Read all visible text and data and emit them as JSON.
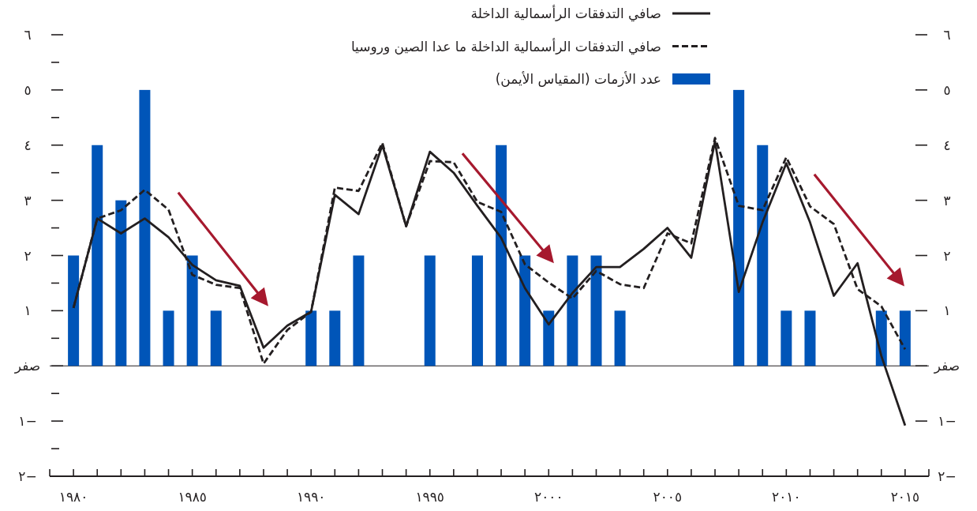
{
  "chart_data": {
    "type": "line",
    "x": [
      1980,
      1981,
      1982,
      1983,
      1984,
      1985,
      1986,
      1987,
      1988,
      1989,
      1990,
      1991,
      1992,
      1993,
      1994,
      1995,
      1996,
      1997,
      1998,
      1999,
      2000,
      2001,
      2002,
      2003,
      2004,
      2005,
      2006,
      2007,
      2008,
      2009,
      2010,
      2011,
      2012,
      2013,
      2014,
      2015
    ],
    "series": [
      {
        "name": "صافي التدفقات الرأسمالية الداخلة",
        "color": "#231f20",
        "line_style": "solid",
        "values": [
          1.05,
          2.67,
          2.4,
          2.67,
          2.33,
          1.83,
          1.55,
          1.45,
          0.33,
          0.73,
          0.98,
          3.1,
          2.75,
          4.0,
          2.53,
          3.88,
          3.5,
          2.9,
          2.32,
          1.41,
          0.75,
          1.32,
          1.79,
          1.79,
          2.12,
          2.5,
          1.96,
          4.07,
          1.34,
          2.6,
          3.67,
          2.6,
          1.27,
          1.86,
          0.18,
          -1.08
        ]
      },
      {
        "name": "صافي التدفقات الرأسمالية الداخلة ما عدا الصين وروسيا",
        "color": "#231f20",
        "line_style": "dashed",
        "values": [
          1.05,
          2.67,
          2.82,
          3.19,
          2.83,
          1.65,
          1.47,
          1.41,
          0.04,
          0.65,
          0.98,
          3.23,
          3.17,
          4.04,
          2.53,
          3.71,
          3.69,
          2.97,
          2.79,
          1.84,
          1.51,
          1.22,
          1.72,
          1.48,
          1.41,
          2.4,
          2.22,
          4.13,
          2.9,
          2.82,
          3.78,
          2.89,
          2.57,
          1.39,
          1.08,
          0.3
        ]
      },
      {
        "name": "عدد الأزمات (المقياس الأيمن)",
        "type": "bar",
        "axis": "y2",
        "color": "#0055b8",
        "values": [
          2,
          4,
          3,
          5,
          1,
          2,
          1,
          0,
          0,
          0,
          1,
          1,
          2,
          0,
          0,
          2,
          0,
          2,
          4,
          2,
          1,
          2,
          2,
          1,
          0,
          0,
          0,
          0,
          5,
          4,
          1,
          1,
          0,
          0,
          1,
          1
        ]
      }
    ],
    "xlim": [
      1979,
      2016
    ],
    "xticks": [
      {
        "value": 1979,
        "label": null
      },
      {
        "value": 1980,
        "label": "١٩٨٠"
      },
      {
        "value": 1981,
        "label": null
      },
      {
        "value": 1982,
        "label": null
      },
      {
        "value": 1983,
        "label": null
      },
      {
        "value": 1984,
        "label": null
      },
      {
        "value": 1985,
        "label": "١٩٨٥"
      },
      {
        "value": 1986,
        "label": null
      },
      {
        "value": 1987,
        "label": null
      },
      {
        "value": 1988,
        "label": null
      },
      {
        "value": 1989,
        "label": null
      },
      {
        "value": 1990,
        "label": "١٩٩٠"
      },
      {
        "value": 1991,
        "label": null
      },
      {
        "value": 1992,
        "label": null
      },
      {
        "value": 1993,
        "label": null
      },
      {
        "value": 1994,
        "label": null
      },
      {
        "value": 1995,
        "label": "١٩٩٥"
      },
      {
        "value": 1996,
        "label": null
      },
      {
        "value": 1997,
        "label": null
      },
      {
        "value": 1998,
        "label": null
      },
      {
        "value": 1999,
        "label": null
      },
      {
        "value": 2000,
        "label": "٢٠٠٠"
      },
      {
        "value": 2001,
        "label": null
      },
      {
        "value": 2002,
        "label": null
      },
      {
        "value": 2003,
        "label": null
      },
      {
        "value": 2004,
        "label": null
      },
      {
        "value": 2005,
        "label": "٢٠٠٥"
      },
      {
        "value": 2006,
        "label": null
      },
      {
        "value": 2007,
        "label": null
      },
      {
        "value": 2008,
        "label": null
      },
      {
        "value": 2009,
        "label": null
      },
      {
        "value": 2010,
        "label": "٢٠١٠"
      },
      {
        "value": 2011,
        "label": null
      },
      {
        "value": 2012,
        "label": null
      },
      {
        "value": 2013,
        "label": null
      },
      {
        "value": 2014,
        "label": null
      },
      {
        "value": 2015,
        "label": "٢٠١٥"
      },
      {
        "value": 2016,
        "label": null
      }
    ],
    "ylim": [
      -2,
      6
    ],
    "yticks": [
      {
        "value": -2,
        "label": "−٢"
      },
      {
        "value": -1.5,
        "label": null
      },
      {
        "value": -1,
        "label": "−١"
      },
      {
        "value": -0.5,
        "label": null
      },
      {
        "value": 0,
        "label": "صفر"
      },
      {
        "value": 0.5,
        "label": null
      },
      {
        "value": 1,
        "label": "١"
      },
      {
        "value": 1.5,
        "label": null
      },
      {
        "value": 2,
        "label": "٢"
      },
      {
        "value": 2.5,
        "label": null
      },
      {
        "value": 3,
        "label": "٣"
      },
      {
        "value": 3.5,
        "label": null
      },
      {
        "value": 4,
        "label": "٤"
      },
      {
        "value": 4.5,
        "label": null
      },
      {
        "value": 5,
        "label": "٥"
      },
      {
        "value": 5.5,
        "label": null
      },
      {
        "value": 6,
        "label": "٦"
      }
    ],
    "y2lim": [
      -2,
      6
    ],
    "y2ticks": [
      {
        "value": -2,
        "label": "−٢"
      },
      {
        "value": -1,
        "label": "−١"
      },
      {
        "value": 0,
        "label": "صفر"
      },
      {
        "value": 1,
        "label": "١"
      },
      {
        "value": 2,
        "label": "٢"
      },
      {
        "value": 3,
        "label": "٣"
      },
      {
        "value": 4,
        "label": "٤"
      },
      {
        "value": 5,
        "label": "٥"
      },
      {
        "value": 6,
        "label": "٦"
      }
    ],
    "ref_lines": [
      {
        "axis": "y",
        "value": 0,
        "color": "#231f20"
      }
    ],
    "legend": "top",
    "marker": "none"
  }
}
